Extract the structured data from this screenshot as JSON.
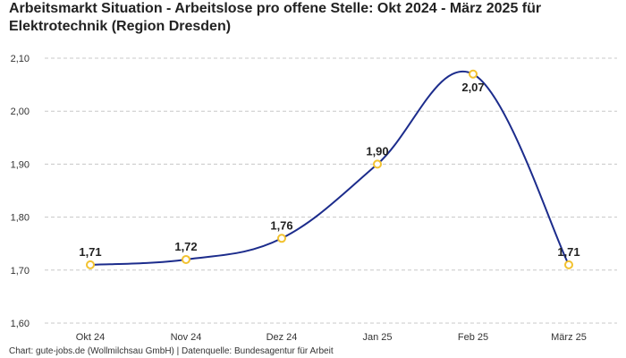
{
  "chart_data": {
    "type": "line",
    "title": "Arbeitsmarkt Situation - Arbeitslose pro offene Stelle: Okt 2024 - März 2025 für Elektrotechnik (Region Dresden)",
    "categories": [
      "Okt 24",
      "Nov 24",
      "Dez 24",
      "Jan 25",
      "Feb 25",
      "März 25"
    ],
    "values": [
      1.71,
      1.72,
      1.76,
      1.9,
      2.07,
      1.71
    ],
    "data_labels": [
      "1,71",
      "1,72",
      "1,76",
      "1,90",
      "2,07",
      "1,71"
    ],
    "yticks": [
      1.6,
      1.7,
      1.8,
      1.9,
      2.0,
      2.1
    ],
    "ytick_labels": [
      "1,60",
      "1,70",
      "1,80",
      "1,90",
      "2,00",
      "2,10"
    ],
    "ylim": [
      1.6,
      2.1
    ],
    "xlabel": "",
    "ylabel": "",
    "grid": true,
    "legend": "none",
    "line_color": "#1c2c8c",
    "marker_color": "#f2c230"
  },
  "footer": {
    "source": "Chart: gute-jobs.de (Wollmilchsau GmbH) | Datenquelle: Bundesagentur für Arbeit"
  }
}
